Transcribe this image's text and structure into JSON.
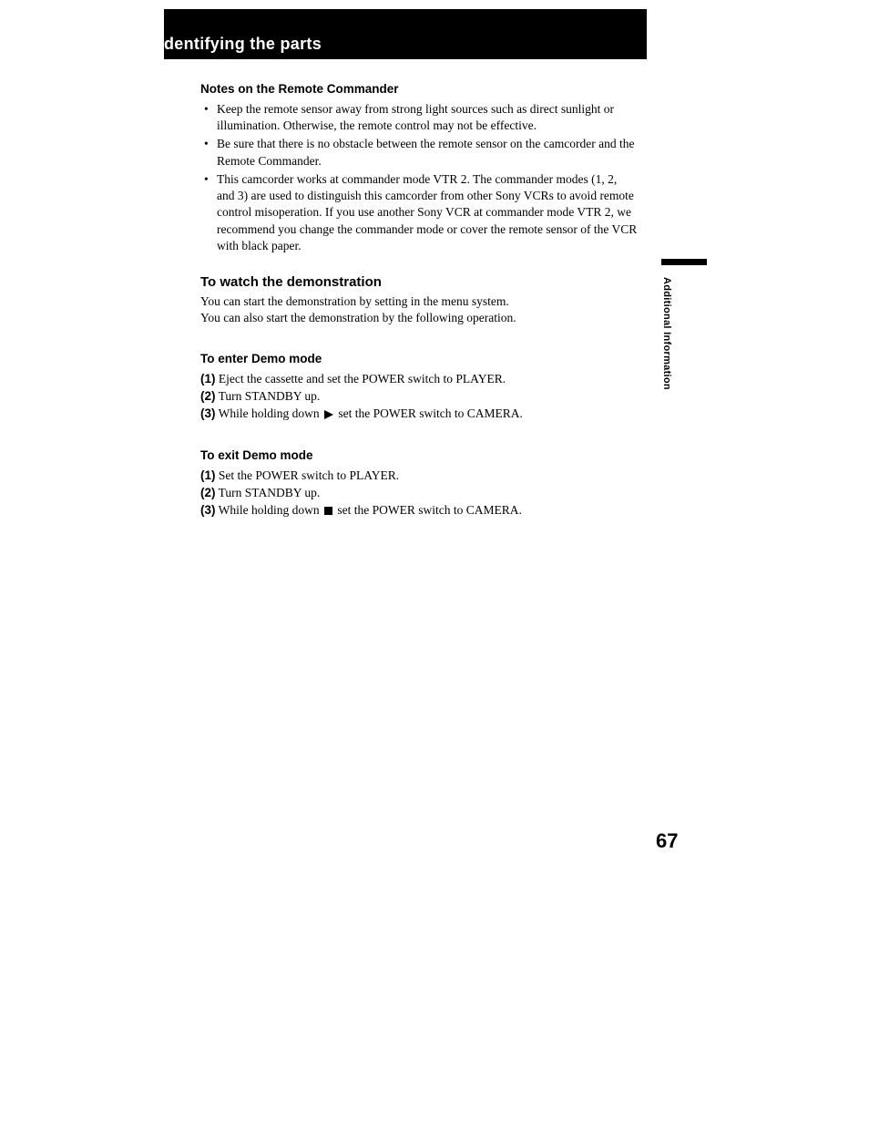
{
  "header": {
    "title": "dentifying the parts"
  },
  "sections": {
    "notes": {
      "heading": "Notes on the Remote Commander",
      "bullets": [
        "Keep the remote sensor away from strong light sources such as direct sunlight or illumination. Otherwise, the remote control may not be effective.",
        "Be sure that there is no obstacle between the remote sensor on the camcorder and the Remote Commander.",
        "This camcorder works at commander mode VTR 2. The commander modes (1, 2, and 3) are used to distinguish this camcorder from other Sony VCRs to avoid remote control misoperation. If you use another Sony VCR at commander mode VTR 2, we recommend you change the commander mode or cover the remote sensor of the VCR with black paper."
      ]
    },
    "demo": {
      "heading": "To watch the demonstration",
      "body1": "You can start the demonstration by setting in the menu system.",
      "body2": "You can also start the demonstration by the following operation."
    },
    "enter": {
      "heading": "To enter Demo mode",
      "step1_num": "(1)",
      "step1_text": " Eject the cassette and set the POWER switch to PLAYER.",
      "step2_num": "(2)",
      "step2_text": " Turn STANDBY up.",
      "step3_num": "(3)",
      "step3_pre": " While holding down ",
      "step3_post": " set the POWER switch to CAMERA."
    },
    "exit": {
      "heading": "To exit Demo mode",
      "step1_num": "(1)",
      "step1_text": " Set the POWER switch to PLAYER.",
      "step2_num": "(2)",
      "step2_text": " Turn STANDBY up.",
      "step3_num": "(3)",
      "step3_pre": " While holding down ",
      "step3_post": " set the POWER switch to CAMERA."
    }
  },
  "side": {
    "label": "Additional Information"
  },
  "page_number": "67"
}
